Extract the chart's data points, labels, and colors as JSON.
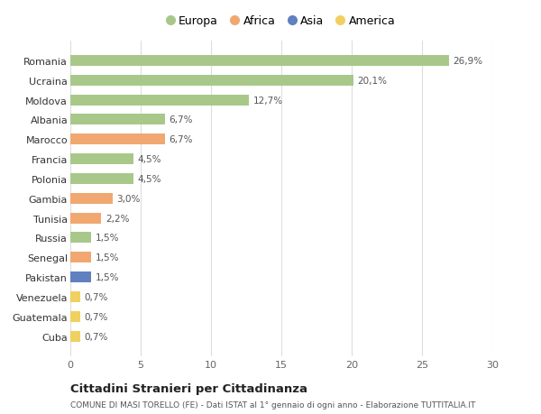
{
  "countries": [
    "Romania",
    "Ucraina",
    "Moldova",
    "Albania",
    "Marocco",
    "Francia",
    "Polonia",
    "Gambia",
    "Tunisia",
    "Russia",
    "Senegal",
    "Pakistan",
    "Venezuela",
    "Guatemala",
    "Cuba"
  ],
  "values": [
    26.9,
    20.1,
    12.7,
    6.7,
    6.7,
    4.5,
    4.5,
    3.0,
    2.2,
    1.5,
    1.5,
    1.5,
    0.7,
    0.7,
    0.7
  ],
  "labels": [
    "26,9%",
    "20,1%",
    "12,7%",
    "6,7%",
    "6,7%",
    "4,5%",
    "4,5%",
    "3,0%",
    "2,2%",
    "1,5%",
    "1,5%",
    "1,5%",
    "0,7%",
    "0,7%",
    "0,7%"
  ],
  "continents": [
    "Europa",
    "Europa",
    "Europa",
    "Europa",
    "Africa",
    "Europa",
    "Europa",
    "Africa",
    "Africa",
    "Europa",
    "Africa",
    "Asia",
    "America",
    "America",
    "America"
  ],
  "colors": {
    "Europa": "#a8c88a",
    "Africa": "#f0a870",
    "Asia": "#6080c0",
    "America": "#f0d060"
  },
  "legend_order": [
    "Europa",
    "Africa",
    "Asia",
    "America"
  ],
  "title": "Cittadini Stranieri per Cittadinanza",
  "subtitle": "COMUNE DI MASI TORELLO (FE) - Dati ISTAT al 1° gennaio di ogni anno - Elaborazione TUTTITALIA.IT",
  "xlim": [
    0,
    30
  ],
  "xticks": [
    0,
    5,
    10,
    15,
    20,
    25,
    30
  ],
  "background_color": "#ffffff",
  "grid_color": "#dddddd"
}
